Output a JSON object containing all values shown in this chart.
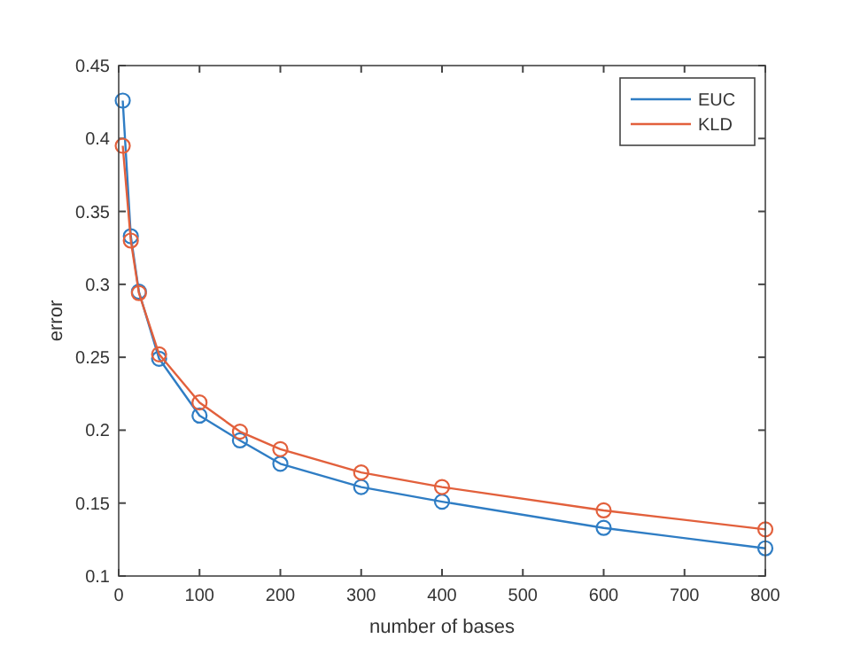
{
  "chart_data": {
    "type": "line",
    "xlabel": "number of bases",
    "ylabel": "error",
    "x": [
      5,
      15,
      25,
      50,
      100,
      150,
      200,
      300,
      400,
      600,
      800
    ],
    "series": [
      {
        "name": "EUC",
        "color": "#2f7dc4",
        "values": [
          0.426,
          0.333,
          0.295,
          0.249,
          0.21,
          0.193,
          0.177,
          0.161,
          0.151,
          0.133,
          0.119
        ]
      },
      {
        "name": "KLD",
        "color": "#e2603c",
        "values": [
          0.395,
          0.33,
          0.294,
          0.252,
          0.219,
          0.199,
          0.187,
          0.171,
          0.161,
          0.145,
          0.132
        ]
      }
    ],
    "xlim": [
      0,
      800
    ],
    "xticks": [
      0,
      100,
      200,
      300,
      400,
      500,
      600,
      700,
      800
    ],
    "ylim": [
      0.1,
      0.45
    ],
    "yticks": [
      0.1,
      0.15,
      0.2,
      0.25,
      0.3,
      0.35,
      0.4,
      0.45
    ],
    "marker": "circle",
    "line_style": "solid",
    "legend": "top right",
    "grid": false
  }
}
